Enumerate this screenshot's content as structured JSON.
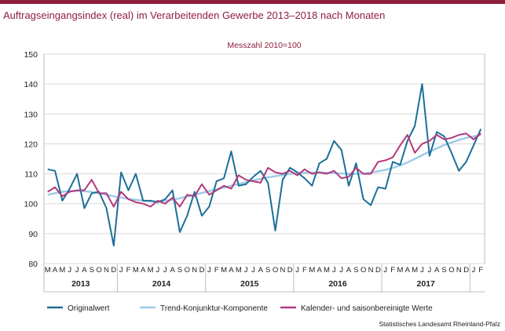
{
  "colors": {
    "brand": "#8e1f3b",
    "original": "#1c6f98",
    "trend": "#9fcbe8",
    "adjusted": "#b13a7a",
    "grid": "#d9d9d9"
  },
  "chart_data": {
    "type": "line",
    "title": "Auftragseingangsindex (real) im Verarbeitenden Gewerbe 2013–2018 nach Monaten",
    "subtitle": "Messzahl 2010=100",
    "ylim": [
      80,
      150
    ],
    "yticks": [
      80,
      90,
      100,
      110,
      120,
      130,
      140,
      150
    ],
    "grid": true,
    "legend_position": "bottom",
    "month_labels": [
      "M",
      "A",
      "M",
      "J",
      "J",
      "A",
      "S",
      "O",
      "N",
      "D",
      "J",
      "F",
      "M",
      "A",
      "M",
      "J",
      "J",
      "A",
      "S",
      "O",
      "N",
      "D",
      "J",
      "F",
      "M",
      "A",
      "M",
      "J",
      "J",
      "A",
      "S",
      "O",
      "N",
      "D",
      "J",
      "F",
      "M",
      "A",
      "M",
      "J",
      "J",
      "A",
      "S",
      "O",
      "N",
      "D",
      "J",
      "F",
      "M",
      "A",
      "M",
      "J",
      "J",
      "A",
      "S",
      "O",
      "N",
      "D",
      "J",
      "F"
    ],
    "year_labels": [
      {
        "label": "2013",
        "start": 0,
        "end": 9
      },
      {
        "label": "2014",
        "start": 10,
        "end": 21
      },
      {
        "label": "2015",
        "start": 22,
        "end": 33
      },
      {
        "label": "2016",
        "start": 34,
        "end": 45
      },
      {
        "label": "2017",
        "start": 46,
        "end": 57
      }
    ],
    "source": "Statistisches Landesamt Rheinland-Pfalz",
    "series": [
      {
        "name": "Originalwert",
        "color": "#1c6f98",
        "values": [
          111.5,
          111,
          101,
          105,
          110,
          98.5,
          103.5,
          104,
          98.5,
          86,
          110.5,
          104.5,
          110,
          101,
          101,
          100.5,
          101.5,
          104.5,
          90.5,
          96,
          104,
          96,
          99,
          107.5,
          108.5,
          117.5,
          106,
          106.5,
          109,
          111,
          107,
          91,
          108,
          112,
          110.5,
          108.5,
          106,
          113.5,
          115,
          121,
          118,
          106,
          113.5,
          101.5,
          99.5,
          105.5,
          105,
          114,
          113,
          121,
          126,
          140,
          116,
          124,
          122.5,
          117,
          111,
          114,
          119.5,
          125
        ]
      },
      {
        "name": "Trend-Konjunktur-Komponente",
        "color": "#9fcbe8",
        "values": [
          103,
          103.5,
          104,
          104.2,
          104.3,
          104.2,
          103.9,
          103.5,
          103,
          102.5,
          102.1,
          101.6,
          101.3,
          101,
          100.8,
          100.8,
          101,
          101.3,
          101.8,
          102.4,
          103,
          103.6,
          104.2,
          104.8,
          105.4,
          106,
          106.6,
          107.2,
          107.8,
          108.3,
          108.8,
          109.2,
          109.6,
          110,
          110.2,
          110.3,
          110.4,
          110.4,
          110.3,
          110.2,
          110.1,
          110,
          110,
          110.1,
          110.4,
          110.8,
          111.3,
          112,
          112.8,
          113.8,
          115,
          116.2,
          117.4,
          118.5,
          119.6,
          120.5,
          121.3,
          122,
          122.5,
          123
        ]
      },
      {
        "name": "Kalender- und saisonbereinigte Werte",
        "color": "#b13a7a",
        "values": [
          104,
          105.5,
          102.5,
          104,
          104.5,
          104.5,
          108,
          103.5,
          103.5,
          99,
          104,
          101.5,
          100.5,
          100,
          99,
          101,
          100,
          102,
          99,
          103,
          102.5,
          106.5,
          103,
          104.5,
          106,
          105,
          109.5,
          108,
          107.5,
          107,
          112,
          110.5,
          110,
          111,
          109.5,
          111.5,
          110,
          110.5,
          110,
          111,
          108.5,
          109,
          112,
          110,
          110,
          114,
          114.5,
          115.5,
          119.5,
          123,
          117,
          120,
          121,
          123,
          121.5,
          122,
          123,
          123.5,
          121.5,
          123.5
        ]
      }
    ]
  }
}
